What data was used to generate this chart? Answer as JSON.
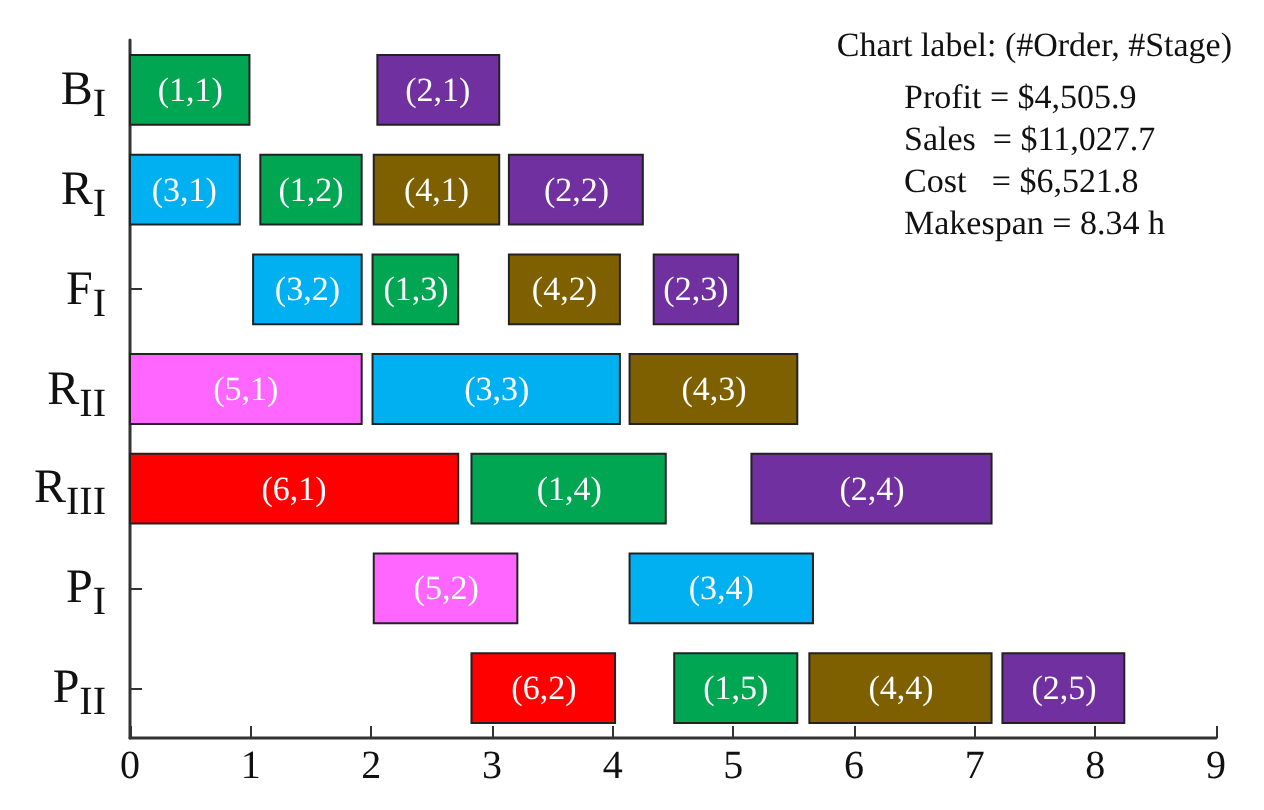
{
  "chart_data": {
    "type": "bar",
    "orientation": "horizontal",
    "categories": [
      "B$_{I}$",
      "R$_{I}$",
      "F$_{I}$",
      "R$_{II}$",
      "R$_{III}$",
      "P$_{I}$",
      "P$_{II}$"
    ],
    "series": [
      {
        "color": "#00a651",
        "base": [
          0,
          1.08,
          2.01,
          null,
          2.83,
          null,
          4.51
        ],
        "values": [
          0.99,
          0.84,
          0.71,
          null,
          1.61,
          null,
          1.02
        ]
      },
      {
        "color": "#7030a0",
        "base": [
          2.05,
          3.14,
          4.34,
          null,
          5.15,
          null,
          7.23
        ],
        "values": [
          1.01,
          1.11,
          0.7,
          null,
          1.99,
          null,
          1.01
        ]
      },
      {
        "color": "#00b0f0",
        "base": [
          null,
          0,
          1.02,
          2.01,
          null,
          4.14,
          null
        ],
        "values": [
          null,
          0.91,
          0.9,
          2.05,
          null,
          1.52,
          null
        ]
      },
      {
        "color": "#7f6000",
        "base": [
          null,
          2.02,
          3.14,
          4.14,
          null,
          null,
          5.63
        ],
        "values": [
          null,
          1.04,
          0.92,
          1.39,
          null,
          null,
          1.51
        ]
      },
      {
        "color": "#ff66ff",
        "base": [
          null,
          null,
          null,
          0,
          null,
          2.02,
          null
        ],
        "values": [
          null,
          null,
          null,
          1.92,
          null,
          1.19,
          null
        ]
      },
      {
        "color": "#ff0000",
        "base": [
          null,
          null,
          null,
          null,
          0,
          null,
          2.83
        ],
        "values": [
          null,
          null,
          null,
          null,
          2.72,
          null,
          1.19
        ]
      }
    ],
    "xlim": [
      0,
      9
    ],
    "xticks": [
      0,
      1,
      2,
      3,
      4,
      5,
      6,
      7,
      8,
      9
    ],
    "grid": false,
    "annotations": [
      "Chart label: (#Order, #Stage)",
      "Profit = $4,505.9",
      "Sales  = $11,027.7",
      "Cost   = $6,521.8",
      "Makespan = 8.34 h",
      {
        "text": "(1,1)",
        "x": 0.5,
        "y": "B$_{I}$"
      },
      {
        "text": "(2,1)",
        "x": 2.55,
        "y": "B$_{I}$"
      },
      {
        "text": "(3,1)",
        "x": 0.45,
        "y": "R$_{I}$"
      },
      {
        "text": "(1,2)",
        "x": 1.5,
        "y": "R$_{I}$"
      },
      {
        "text": "(4,1)",
        "x": 2.54,
        "y": "R$_{I}$"
      },
      {
        "text": "(2,2)",
        "x": 3.7,
        "y": "R$_{I}$"
      },
      {
        "text": "(3,2)",
        "x": 1.47,
        "y": "F$_{I}$"
      },
      {
        "text": "(1,3)",
        "x": 2.37,
        "y": "F$_{I}$"
      },
      {
        "text": "(4,2)",
        "x": 3.6,
        "y": "F$_{I}$"
      },
      {
        "text": "(2,3)",
        "x": 4.69,
        "y": "F$_{I}$"
      },
      {
        "text": "(5,1)",
        "x": 0.96,
        "y": "R$_{II}$"
      },
      {
        "text": "(3,3)",
        "x": 3.04,
        "y": "R$_{II}$"
      },
      {
        "text": "(4,3)",
        "x": 4.84,
        "y": "R$_{II}$"
      },
      {
        "text": "(6,1)",
        "x": 1.36,
        "y": "R$_{III}$"
      },
      {
        "text": "(1,4)",
        "x": 3.64,
        "y": "R$_{III}$"
      },
      {
        "text": "(2,4)",
        "x": 6.15,
        "y": "R$_{III}$"
      },
      {
        "text": "(5,2)",
        "x": 2.62,
        "y": "P$_{I}$"
      },
      {
        "text": "(3,4)",
        "x": 4.9,
        "y": "P$_{I}$"
      },
      {
        "text": "(6,2)",
        "x": 3.43,
        "y": "P$_{II}$"
      },
      {
        "text": "(1,5)",
        "x": 5.02,
        "y": "P$_{II}$"
      },
      {
        "text": "(4,4)",
        "x": 6.39,
        "y": "P$_{II}$"
      },
      {
        "text": "(2,5)",
        "x": 7.74,
        "y": "P$_{II}$"
      }
    ]
  }
}
